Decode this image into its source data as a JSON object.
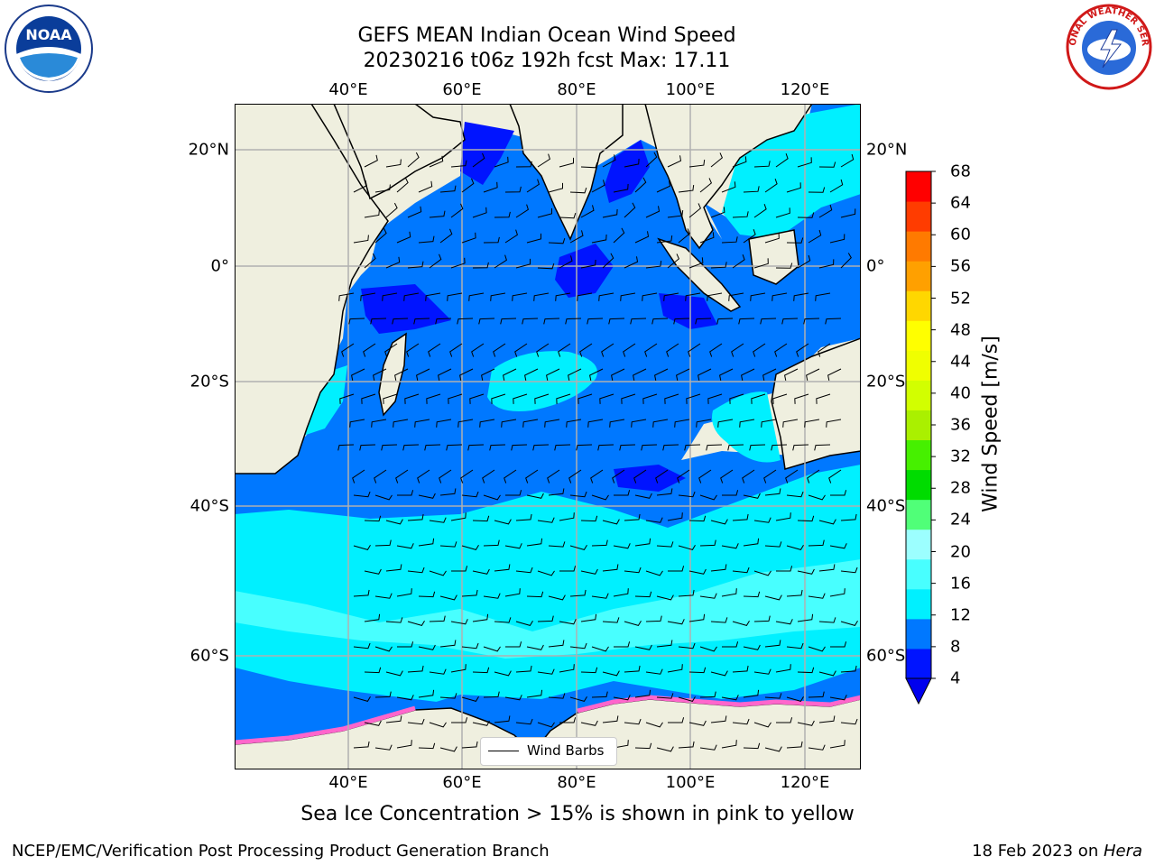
{
  "title": {
    "line1": "GEFS MEAN Indian Ocean Wind Speed",
    "line2": "20230216 t06z 192h fcst   Max: 17.11"
  },
  "axes": {
    "lon_ticks": [
      "40°E",
      "60°E",
      "80°E",
      "100°E",
      "120°E"
    ],
    "lat_ticks": [
      "20°N",
      "0°",
      "20°S",
      "40°S",
      "60°S"
    ]
  },
  "colorbar": {
    "label": "Wind Speed [m/s]",
    "ticks": [
      "4",
      "8",
      "12",
      "16",
      "20",
      "24",
      "28",
      "32",
      "36",
      "40",
      "44",
      "48",
      "52",
      "56",
      "60",
      "64",
      "68"
    ],
    "colors": [
      "#0014ff",
      "#0078ff",
      "#00f0ff",
      "#48ffff",
      "#9cffff",
      "#50ff78",
      "#00dc00",
      "#46f000",
      "#aaf000",
      "#d2ff00",
      "#f0ff00",
      "#ffff00",
      "#ffd700",
      "#ffa000",
      "#ff7a00",
      "#ff3c00",
      "#ff0000"
    ],
    "under_color": "#0000ee"
  },
  "legend": {
    "label": "Wind Barbs"
  },
  "footnote": "Sea Ice Concentration > 15% is shown in pink to yellow",
  "credit": {
    "left": "NCEP/EMC/Verification Post Processing Product Generation Branch",
    "right_prefix": "18 Feb 2023 on ",
    "right_machine": "Hera"
  },
  "logos": {
    "left": {
      "name": "noaa-logo",
      "text": "NOAA"
    },
    "right": {
      "name": "nws-logo",
      "text": "NATIONAL WEATHER SERVICE"
    }
  },
  "colors": {
    "land": "#efefdf",
    "ocean_deep": "#0014ff",
    "ocean_mid": "#0078ff",
    "ocean_high": "#00f0ff",
    "ocean_very_high": "#48ffff",
    "sea_ice": "#ff66cc",
    "grid": "#b0b0b0"
  }
}
